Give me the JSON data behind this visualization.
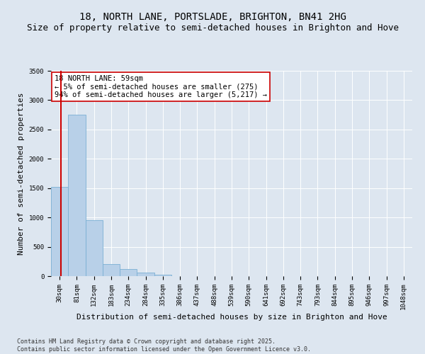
{
  "title": "18, NORTH LANE, PORTSLADE, BRIGHTON, BN41 2HG",
  "subtitle": "Size of property relative to semi-detached houses in Brighton and Hove",
  "xlabel": "Distribution of semi-detached houses by size in Brighton and Hove",
  "ylabel": "Number of semi-detached properties",
  "bin_labels": [
    "30sqm",
    "81sqm",
    "132sqm",
    "183sqm",
    "234sqm",
    "284sqm",
    "335sqm",
    "386sqm",
    "437sqm",
    "488sqm",
    "539sqm",
    "590sqm",
    "641sqm",
    "692sqm",
    "743sqm",
    "793sqm",
    "844sqm",
    "895sqm",
    "946sqm",
    "997sqm",
    "1048sqm"
  ],
  "bar_values": [
    1520,
    2750,
    950,
    210,
    120,
    55,
    28,
    5,
    0,
    0,
    0,
    0,
    0,
    0,
    0,
    0,
    0,
    0,
    0,
    0,
    0
  ],
  "bar_color": "#b8d0e8",
  "bar_edge_color": "#7aafd4",
  "vline_color": "#cc0000",
  "vline_x_index": 0.565,
  "annotation_text": "18 NORTH LANE: 59sqm\n← 5% of semi-detached houses are smaller (275)\n94% of semi-detached houses are larger (5,217) →",
  "annotation_box_facecolor": "#ffffff",
  "annotation_box_edgecolor": "#cc0000",
  "ylim": [
    0,
    3500
  ],
  "yticks": [
    0,
    500,
    1000,
    1500,
    2000,
    2500,
    3000,
    3500
  ],
  "bg_color": "#dde6f0",
  "plot_bg_color": "#dde6f0",
  "footnote": "Contains HM Land Registry data © Crown copyright and database right 2025.\nContains public sector information licensed under the Open Government Licence v3.0.",
  "title_fontsize": 10,
  "subtitle_fontsize": 9,
  "xlabel_fontsize": 8,
  "ylabel_fontsize": 8,
  "annotation_fontsize": 7.5,
  "tick_fontsize": 6.5,
  "footnote_fontsize": 6
}
